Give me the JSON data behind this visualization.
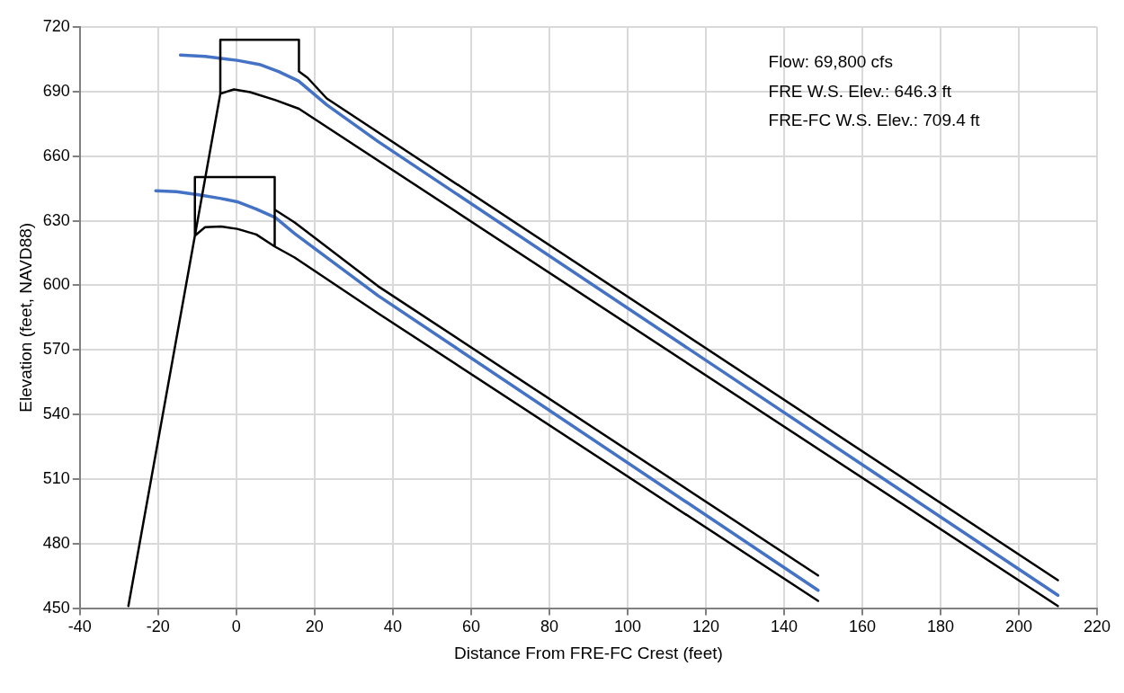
{
  "chart_data": {
    "type": "line",
    "xlabel": "Distance From FRE-FC Crest (feet)",
    "ylabel": "Elevation (feet, NAVD88)",
    "annotations": [
      "Flow: 69,800 cfs",
      "FRE W.S. Elev.: 646.3 ft",
      "FRE-FC W.S. Elev.: 709.4 ft"
    ],
    "series": [
      {
        "color": "#000000",
        "x": [
          210,
          23.1,
          18.2,
          16,
          16,
          -4.1,
          -4.1,
          -0.6,
          3.5,
          10,
          16,
          210,
          16,
          10,
          3.5,
          -0.6,
          -4.1,
          -10.6,
          -8,
          -3.9,
          0.2,
          5.1,
          9.8,
          14.9,
          36.2,
          148.7,
          36.2,
          14.9,
          9.8,
          9.8,
          14.9,
          36.2,
          148.7,
          36.2,
          14.9,
          9.8,
          9.8,
          -10.6,
          -10.6,
          -27.6
        ],
        "values": [
          463,
          686.8,
          696.4,
          699.3,
          714,
          714,
          689,
          691,
          689.7,
          686,
          682,
          451,
          682,
          686,
          689.7,
          691,
          689,
          623,
          627,
          627.3,
          626.2,
          623.6,
          618,
          612.9,
          587,
          453.4,
          587,
          612.9,
          618,
          635.1,
          629.2,
          599.6,
          465.2,
          599.6,
          629.2,
          635.1,
          650.3,
          650.3,
          623,
          451
        ]
      },
      {
        "color": "#4472c4",
        "x": [
          -14.3,
          -8,
          0.2,
          5.9,
          10.8,
          15.9,
          23.1,
          36.2,
          210
        ],
        "values": [
          707,
          706.3,
          704.5,
          702.6,
          699.3,
          694.9,
          683.8,
          666.8,
          456
        ]
      },
      {
        "color": "#4472c4",
        "x": [
          -20.6,
          -15.3,
          -9.6,
          -3.9,
          0.2,
          5.1,
          10,
          14.9,
          36.2,
          148.7
        ],
        "values": [
          643.9,
          643.5,
          642,
          640.3,
          638.8,
          635.4,
          631.4,
          624,
          595.2,
          458.3
        ]
      }
    ],
    "xlim": [
      -40,
      220
    ],
    "xticks": [
      -40,
      -20,
      0,
      20,
      40,
      60,
      80,
      100,
      120,
      140,
      160,
      180,
      200,
      220
    ],
    "ylim": [
      450,
      720
    ],
    "yticks": [
      450,
      480,
      510,
      540,
      570,
      600,
      630,
      660,
      690,
      720
    ],
    "grid": true,
    "legend": false
  }
}
